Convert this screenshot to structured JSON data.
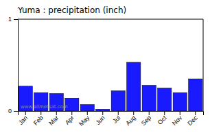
{
  "chart_data": {
    "type": "bar",
    "title": "Yuma : precipitation (inch)",
    "categories": [
      "Jan",
      "Feb",
      "Mar",
      "Apr",
      "May",
      "Jun",
      "Jul",
      "Aug",
      "Sep",
      "Oct",
      "Nov",
      "Dec"
    ],
    "values": [
      0.27,
      0.2,
      0.19,
      0.14,
      0.07,
      0.02,
      0.22,
      0.53,
      0.28,
      0.25,
      0.2,
      0.35
    ],
    "color": "#1a1aff",
    "ylim": [
      0,
      1
    ],
    "yticks": [
      0,
      1
    ],
    "annotations": [
      "www.allmetsat.com"
    ]
  }
}
